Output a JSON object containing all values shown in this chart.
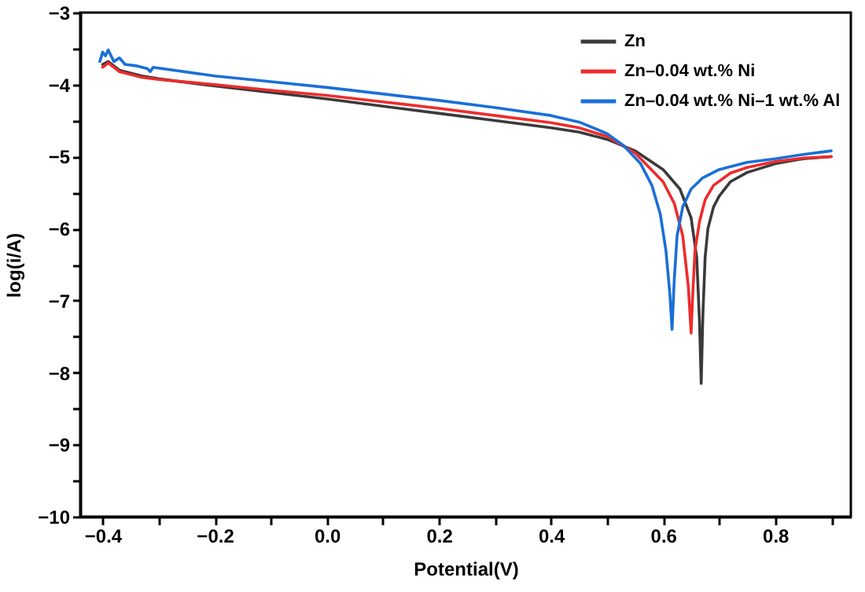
{
  "chart_data": {
    "type": "line",
    "xlabel": "Potential(V)",
    "ylabel": "log(i/A)",
    "xlim": [
      -0.44,
      0.935
    ],
    "ylim": [
      -10,
      -3
    ],
    "xticks": [
      -0.4,
      {
        "value": -0.3,
        "label": null
      },
      -0.2,
      {
        "value": -0.1,
        "label": null
      },
      {
        "value": 0,
        "label": "0.0"
      },
      {
        "value": 0.1,
        "label": null
      },
      0.2,
      {
        "value": 0.3,
        "label": null
      },
      0.4,
      {
        "value": 0.5,
        "label": null
      },
      0.6,
      {
        "value": 0.7,
        "label": null
      },
      0.8,
      {
        "value": 0.9,
        "label": null
      }
    ],
    "yticks": [
      -10,
      {
        "value": -9.5,
        "label": null
      },
      -9,
      {
        "value": -8.5,
        "label": null
      },
      -8,
      {
        "value": -7.5,
        "label": null
      },
      -7,
      {
        "value": -6.5,
        "label": null
      },
      -6,
      {
        "value": -5.5,
        "label": null
      },
      -5,
      {
        "value": -4.5,
        "label": null
      },
      -4,
      {
        "value": -3.5,
        "label": null
      },
      -3
    ],
    "grid": false,
    "legend": "top right",
    "marker": "none",
    "line_style": "solid",
    "series": [
      {
        "name": "Zn",
        "color": "#3a3a3a",
        "x": [
          -0.4,
          -0.39,
          -0.37,
          -0.33,
          -0.3,
          -0.2,
          -0.1,
          0.0,
          0.1,
          0.2,
          0.3,
          0.4,
          0.45,
          0.5,
          0.55,
          0.6,
          0.63,
          0.65,
          0.66,
          0.665,
          0.668,
          0.671,
          0.675,
          0.68,
          0.69,
          0.7,
          0.72,
          0.75,
          0.8,
          0.85,
          0.9
        ],
        "values": [
          -3.72,
          -3.68,
          -3.8,
          -3.88,
          -3.92,
          -4.02,
          -4.11,
          -4.2,
          -4.3,
          -4.4,
          -4.5,
          -4.6,
          -4.66,
          -4.76,
          -4.92,
          -5.18,
          -5.45,
          -5.85,
          -6.4,
          -7.3,
          -8.15,
          -7.2,
          -6.4,
          -6.0,
          -5.7,
          -5.55,
          -5.35,
          -5.22,
          -5.1,
          -5.03,
          -5.0
        ]
      },
      {
        "name": "Zn–0.04 wt.% Ni",
        "color": "#ee2b2b",
        "x": [
          -0.4,
          -0.39,
          -0.37,
          -0.33,
          -0.3,
          -0.2,
          -0.1,
          0.0,
          0.1,
          0.2,
          0.3,
          0.4,
          0.45,
          0.5,
          0.55,
          0.6,
          0.62,
          0.635,
          0.645,
          0.65,
          0.653,
          0.657,
          0.665,
          0.675,
          0.69,
          0.72,
          0.75,
          0.8,
          0.85,
          0.9
        ],
        "values": [
          -3.76,
          -3.7,
          -3.82,
          -3.9,
          -3.93,
          -4.0,
          -4.08,
          -4.15,
          -4.24,
          -4.33,
          -4.43,
          -4.53,
          -4.6,
          -4.72,
          -4.95,
          -5.35,
          -5.65,
          -6.1,
          -6.8,
          -7.45,
          -6.9,
          -6.3,
          -5.9,
          -5.6,
          -5.4,
          -5.23,
          -5.15,
          -5.07,
          -5.02,
          -5.0
        ]
      },
      {
        "name": "Zn–0.04 wt.% Ni–1 wt.% Al",
        "color": "#1a6fd8",
        "x": [
          -0.405,
          -0.4,
          -0.395,
          -0.39,
          -0.385,
          -0.38,
          -0.37,
          -0.36,
          -0.34,
          -0.32,
          -0.315,
          -0.31,
          -0.2,
          -0.1,
          0.0,
          0.1,
          0.2,
          0.3,
          0.4,
          0.45,
          0.5,
          0.53,
          0.56,
          0.58,
          0.595,
          0.605,
          0.612,
          0.616,
          0.62,
          0.625,
          0.635,
          0.65,
          0.67,
          0.7,
          0.75,
          0.8,
          0.85,
          0.9
        ],
        "values": [
          -3.68,
          -3.55,
          -3.6,
          -3.52,
          -3.6,
          -3.68,
          -3.63,
          -3.72,
          -3.74,
          -3.78,
          -3.82,
          -3.76,
          -3.88,
          -3.96,
          -4.04,
          -4.13,
          -4.22,
          -4.32,
          -4.43,
          -4.52,
          -4.68,
          -4.85,
          -5.1,
          -5.4,
          -5.8,
          -6.3,
          -6.9,
          -7.4,
          -6.7,
          -6.1,
          -5.7,
          -5.45,
          -5.3,
          -5.18,
          -5.08,
          -5.03,
          -4.97,
          -4.92
        ]
      }
    ]
  }
}
